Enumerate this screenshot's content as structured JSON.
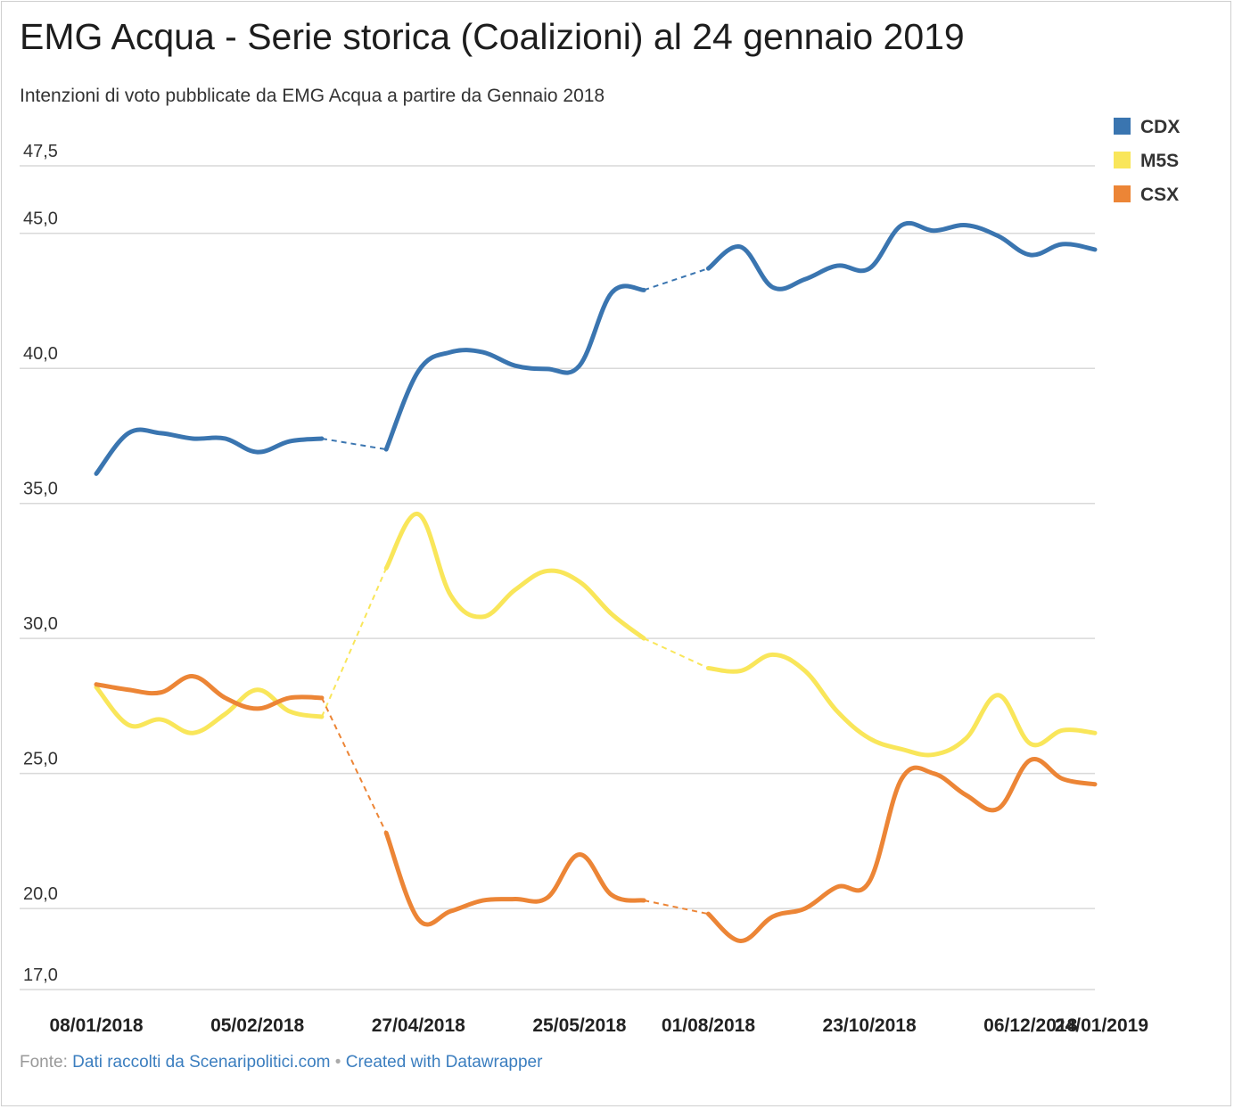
{
  "header": {
    "title": "EMG Acqua - Serie storica (Coalizioni) al 24 gennaio 2019",
    "subtitle": "Intenzioni di voto pubblicate da EMG Acqua a partire da Gennaio 2018"
  },
  "footer": {
    "source_label": "Fonte:",
    "source_link": "Dati raccolti da Scenaripolitici.com",
    "separator": "•",
    "credit_link": "Created with Datawrapper"
  },
  "colors": {
    "CDX": "#3a75b0",
    "M5S": "#f9e65a",
    "CSX": "#ec8536",
    "grid": "#d9d9d9"
  },
  "chart_data": {
    "type": "line",
    "title": "EMG Acqua - Serie storica (Coalizioni) al 24 gennaio 2019",
    "subtitle": "Intenzioni di voto pubblicate da EMG Acqua a partire da Gennaio 2018",
    "xlabel": "",
    "ylabel": "",
    "ylim": [
      17.0,
      47.5
    ],
    "yticks": [
      "47,5",
      "45,0",
      "40,0",
      "35,0",
      "30,0",
      "25,0",
      "20,0",
      "17,0"
    ],
    "ytick_values": [
      47.5,
      45.0,
      40.0,
      35.0,
      30.0,
      25.0,
      20.0,
      17.0
    ],
    "xtick_labels": [
      "08/01/2018",
      "05/02/2018",
      "27/04/2018",
      "25/05/2018",
      "01/08/2018",
      "23/10/2018",
      "06/12/2018",
      "24/01/2019"
    ],
    "xtick_index": [
      0,
      5,
      10,
      15,
      19,
      24,
      29,
      35
    ],
    "grid": true,
    "legend_position": "top-right",
    "dashed_gaps": [
      [
        7,
        9
      ],
      [
        17,
        19
      ]
    ],
    "series": [
      {
        "name": "CDX",
        "values": [
          36.1,
          37.6,
          37.6,
          37.4,
          37.4,
          36.9,
          37.3,
          37.4,
          null,
          37.0,
          39.9,
          40.6,
          40.6,
          40.1,
          39.98,
          40.1,
          42.8,
          42.9,
          null,
          43.7,
          44.5,
          43.0,
          43.3,
          43.8,
          43.7,
          45.3,
          45.1,
          45.3,
          44.9,
          44.2,
          44.6,
          44.4
        ]
      },
      {
        "name": "M5S",
        "values": [
          28.2,
          26.8,
          27.0,
          26.5,
          27.2,
          28.1,
          27.3,
          27.1,
          null,
          32.6,
          34.6,
          31.6,
          30.8,
          31.8,
          32.5,
          32.1,
          30.9,
          30.0,
          null,
          28.9,
          28.8,
          29.4,
          28.8,
          27.3,
          26.3,
          25.9,
          25.7,
          26.3,
          27.9,
          26.1,
          26.6,
          26.5
        ]
      },
      {
        "name": "CSX",
        "values": [
          28.3,
          28.1,
          28.0,
          28.6,
          27.8,
          27.4,
          27.8,
          27.8,
          null,
          22.8,
          19.6,
          19.9,
          20.3,
          20.35,
          20.4,
          22.0,
          20.5,
          20.3,
          null,
          19.8,
          18.8,
          19.7,
          20.0,
          20.8,
          21.0,
          24.8,
          25.0,
          24.2,
          23.7,
          25.5,
          24.8,
          24.6
        ]
      }
    ]
  }
}
